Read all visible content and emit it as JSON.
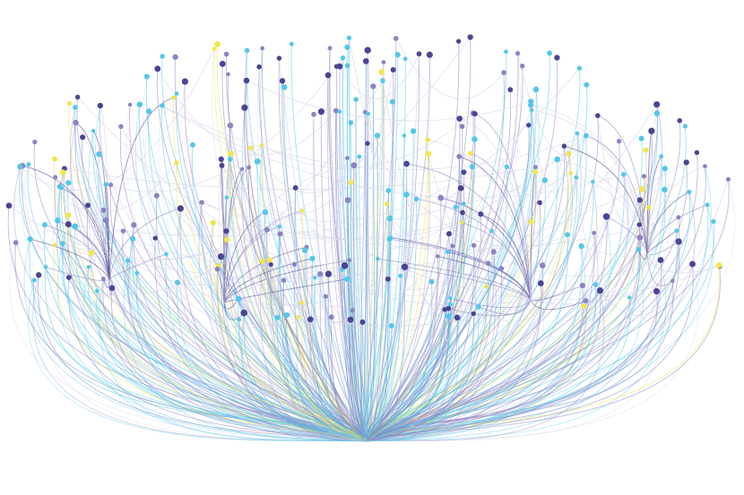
{
  "diagram": {
    "type": "hierarchical-edge-bundle",
    "background": "#ffffff",
    "palette": {
      "dark": "#4a4494",
      "medium": "#8a84c2",
      "cyan": "#52c8ea",
      "yellow": "#f1e64a",
      "faint": "#d6d3ea"
    },
    "legend": "none",
    "labels": "none"
  }
}
